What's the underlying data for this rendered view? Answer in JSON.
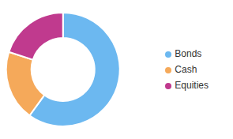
{
  "chart_data": {
    "type": "pie",
    "categories": [
      "Bonds",
      "Cash",
      "Equities"
    ],
    "values": [
      60,
      20,
      20
    ],
    "colors": [
      "#6CB8F0",
      "#F5A95A",
      "#C03A8E"
    ],
    "legend": "right"
  }
}
